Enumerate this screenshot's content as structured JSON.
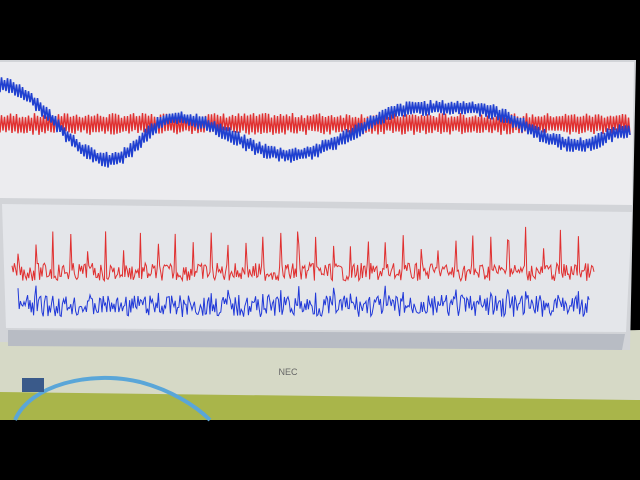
{
  "bezel": {
    "brand": "NEC"
  }
}
